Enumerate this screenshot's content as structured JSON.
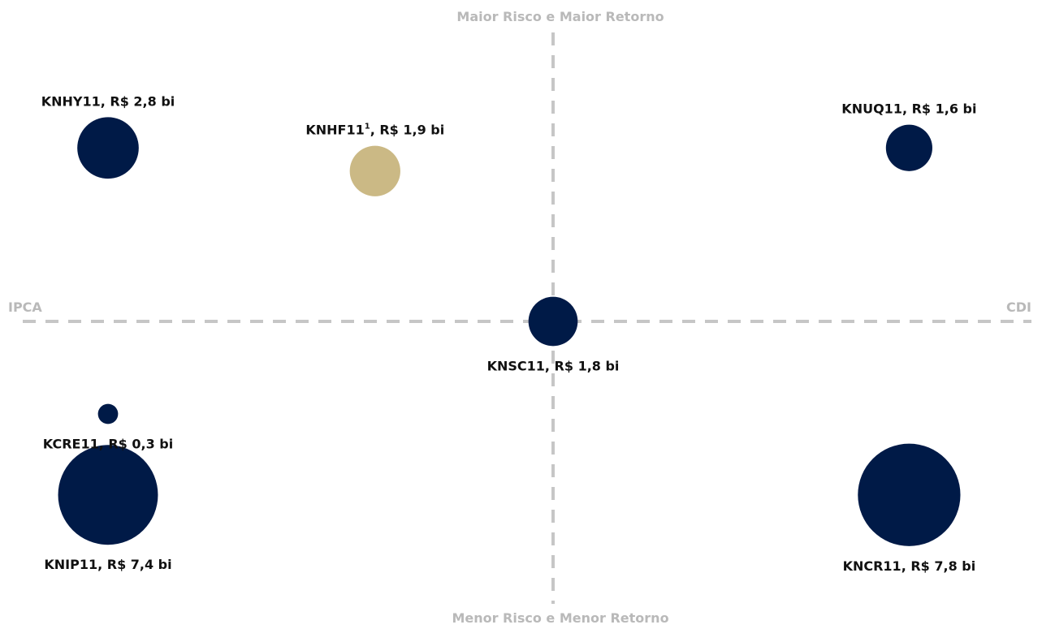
{
  "chart_data": {
    "type": "scatter",
    "title": "",
    "axes": {
      "top_label": "Maior Risco e Maior Retorno",
      "bottom_label": "Menor Risco e Menor Retorno",
      "left_label": "IPCA",
      "right_label": "CDI"
    },
    "grid": false,
    "colors": {
      "default": "#001a47",
      "highlight": "#cbb985",
      "axis": "#c6c6c6",
      "axis_label": "#b9b9b9"
    },
    "series": [
      {
        "ticker": "KNHY11",
        "sup": "",
        "value_label": ", R$ 2,8 bi",
        "aum_bi": 2.8,
        "x": -1.0,
        "y": 0.75,
        "color": "#001a47"
      },
      {
        "ticker": "KNHF11",
        "sup": "1",
        "value_label": ", R$ 1,9 bi",
        "aum_bi": 1.9,
        "x": -0.4,
        "y": 0.65,
        "color": "#cbb985"
      },
      {
        "ticker": "KNUQ11",
        "sup": "",
        "value_label": ", R$ 1,6 bi",
        "aum_bi": 1.6,
        "x": 0.8,
        "y": 0.75,
        "color": "#001a47"
      },
      {
        "ticker": "KNSC11",
        "sup": "",
        "value_label": ", R$ 1,8 bi",
        "aum_bi": 1.8,
        "x": 0.0,
        "y": 0.0,
        "color": "#001a47"
      },
      {
        "ticker": "KCRE11",
        "sup": "",
        "value_label": ", R$ 0,3 bi",
        "aum_bi": 0.3,
        "x": -1.0,
        "y": -0.4,
        "color": "#001a47"
      },
      {
        "ticker": "KNIP11",
        "sup": "",
        "value_label": ", R$ 7,4 bi",
        "aum_bi": 7.4,
        "x": -1.0,
        "y": -0.75,
        "color": "#001a47"
      },
      {
        "ticker": "KNCR11",
        "sup": "",
        "value_label": ", R$ 7,8 bi",
        "aum_bi": 7.8,
        "x": 0.8,
        "y": -0.75,
        "color": "#001a47"
      }
    ]
  }
}
